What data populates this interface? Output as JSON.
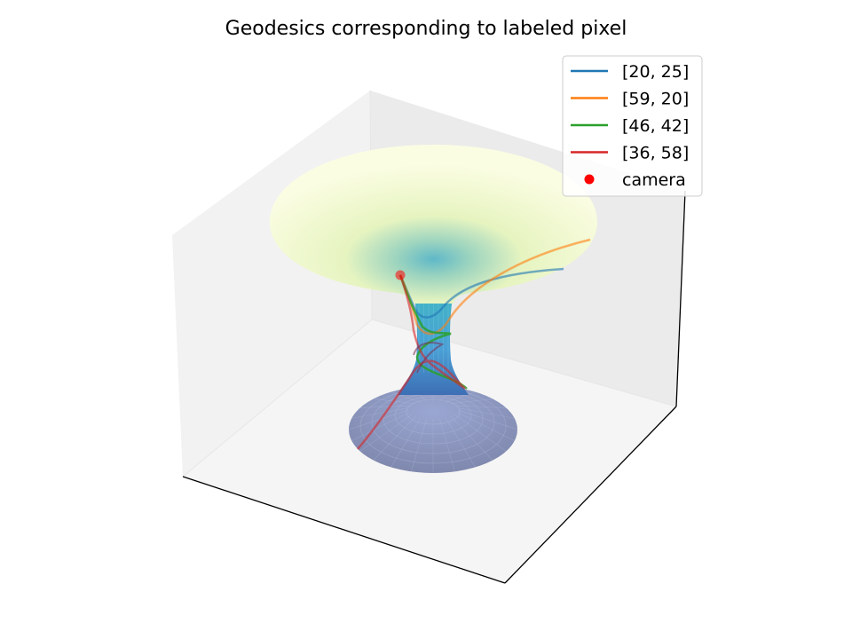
{
  "chart_data": {
    "type": "line",
    "title": "Geodesics corresponding to labeled pixel",
    "projection": "3d",
    "axis_ticks": "hidden",
    "legend_position": "top-right",
    "surface": {
      "kind": "wormhole",
      "colormap": "YlGnBu"
    },
    "series": [
      {
        "name": "[20, 25]",
        "color": "#1f77b4"
      },
      {
        "name": "[59, 20]",
        "color": "#ff7f0e"
      },
      {
        "name": "[46, 42]",
        "color": "#2ca02c"
      },
      {
        "name": "[36, 58]",
        "color": "#d62728"
      }
    ],
    "camera": {
      "name": "camera",
      "color": "#ff0000"
    }
  }
}
